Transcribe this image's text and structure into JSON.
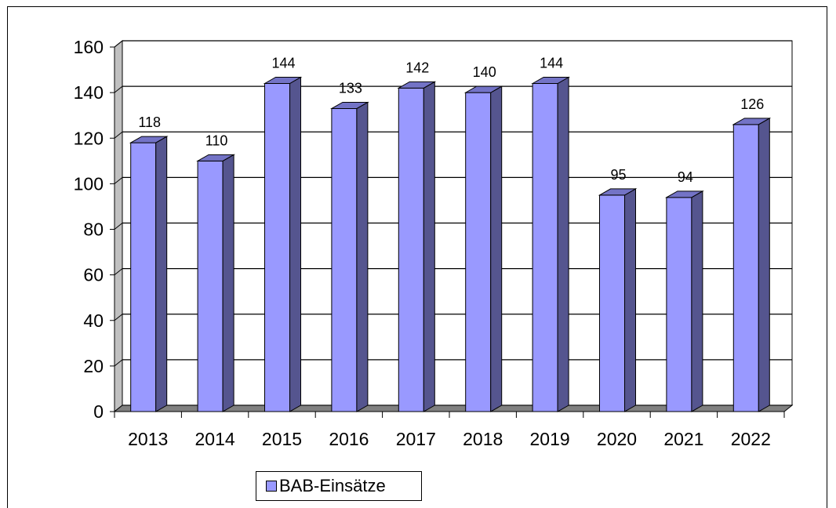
{
  "chart_data": {
    "type": "bar",
    "categories": [
      "2013",
      "2014",
      "2015",
      "2016",
      "2017",
      "2018",
      "2019",
      "2020",
      "2021",
      "2022"
    ],
    "series": [
      {
        "name": "BAB-Einsätze",
        "values": [
          118,
          110,
          144,
          133,
          142,
          140,
          144,
          95,
          94,
          126
        ]
      }
    ],
    "ylim": [
      0,
      160
    ],
    "yticks": [
      0,
      20,
      40,
      60,
      80,
      100,
      120,
      140,
      160
    ],
    "grid": true,
    "legend": "bottom",
    "colors": {
      "bar_front": "#9999ff",
      "bar_side": "#55558f",
      "bar_top": "#7373c6",
      "wall": "#ffffff",
      "floor": "#808080"
    }
  }
}
